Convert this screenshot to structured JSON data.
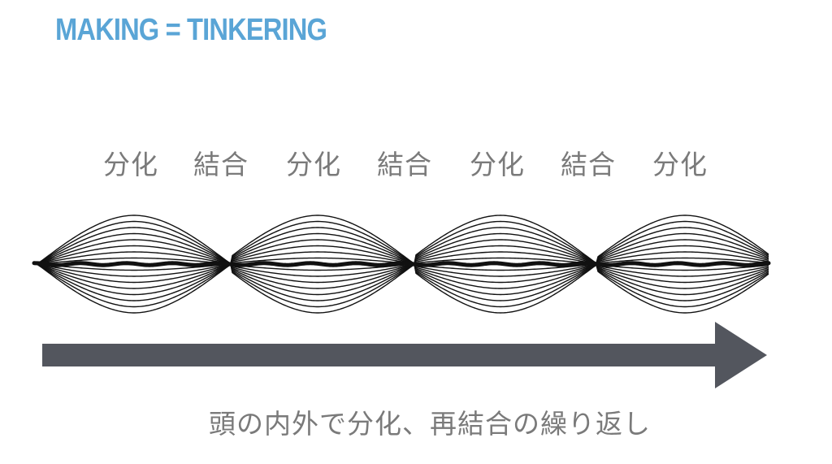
{
  "title": "MAKING = TINKERING",
  "phases": [
    "分化",
    "結合",
    "分化",
    "結合",
    "分化",
    "結合",
    "分化"
  ],
  "caption": "頭の内外で分化、再結合の繰り返し",
  "colors": {
    "title": "#5aa5d6",
    "label": "#7a7a7a",
    "strands": "#111111",
    "arrow": "#53565e"
  }
}
